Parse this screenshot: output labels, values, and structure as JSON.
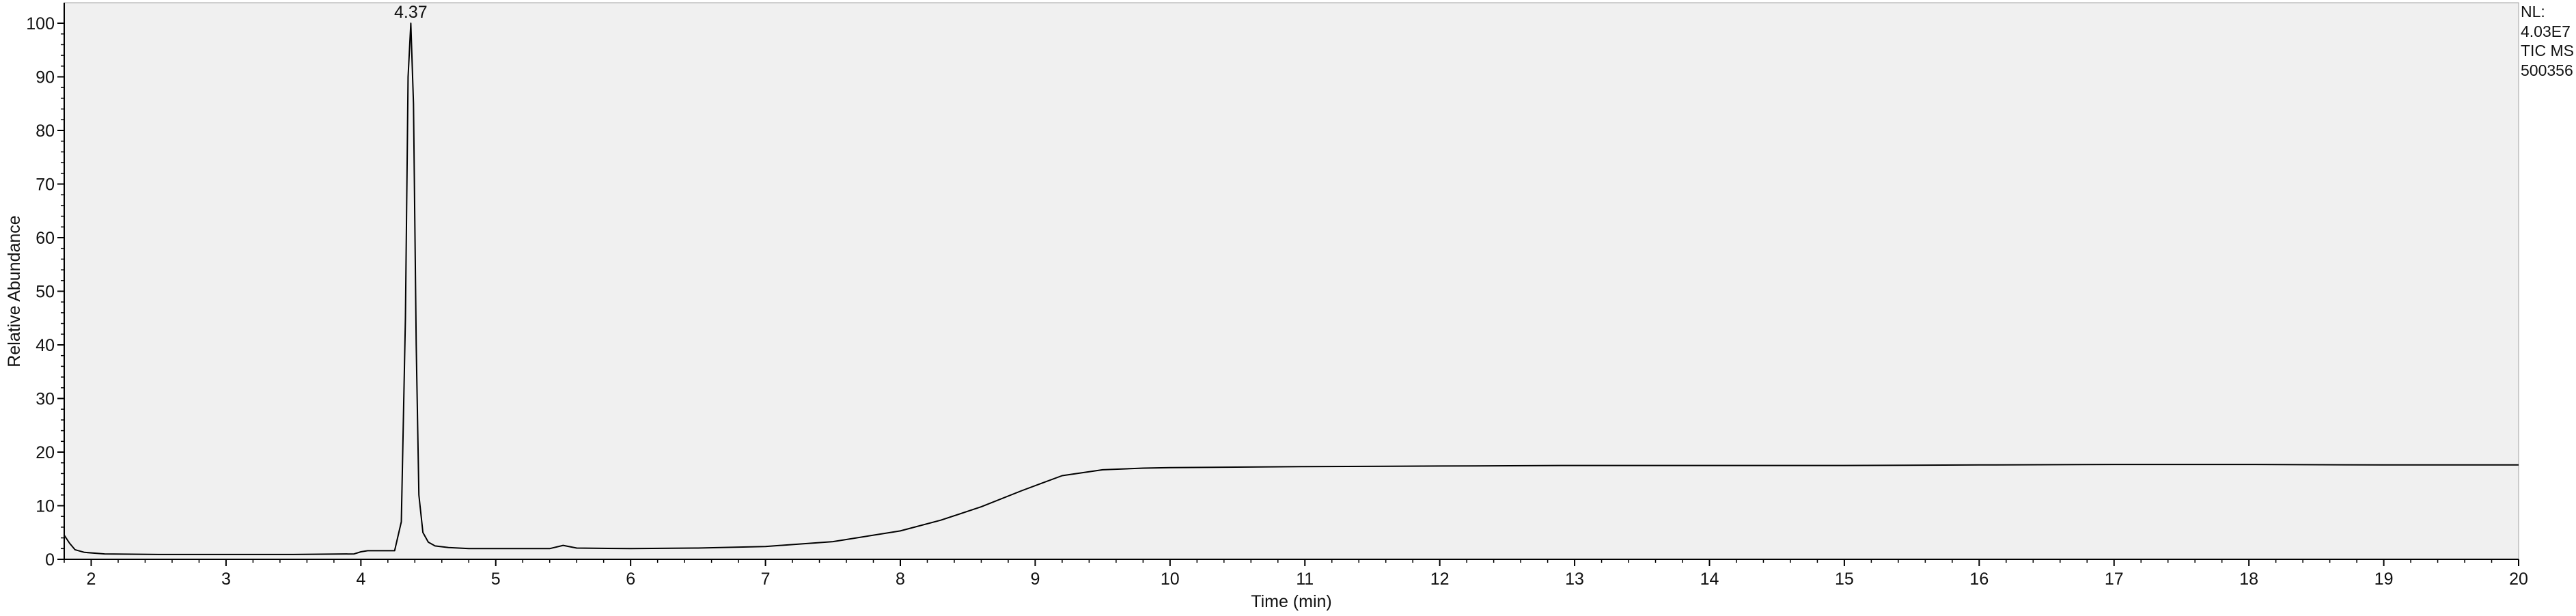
{
  "info": {
    "nl_label": "NL:",
    "nl_value": "4.03E7",
    "trace": "TIC  MS",
    "sample": "500356"
  },
  "chart_data": {
    "type": "line",
    "title": "",
    "xlabel": "Time (min)",
    "ylabel": "Relative Abundance",
    "xlim": [
      1.8,
      20.0
    ],
    "ylim": [
      0,
      100
    ],
    "xticks": [
      2,
      3,
      4,
      5,
      6,
      7,
      8,
      9,
      10,
      11,
      12,
      13,
      14,
      15,
      16,
      17,
      18,
      19,
      20
    ],
    "yticks": [
      0,
      10,
      20,
      30,
      40,
      50,
      60,
      70,
      80,
      90,
      100
    ],
    "grid": false,
    "peak_annotations": [
      {
        "x": 4.37,
        "y": 100,
        "label": "4.37"
      }
    ],
    "series": [
      {
        "x": [
          1.8,
          1.84,
          1.88,
          1.95,
          2.1,
          2.5,
          3.0,
          3.5,
          3.95,
          4.0,
          4.05,
          4.25,
          4.3,
          4.33,
          4.35,
          4.37,
          4.39,
          4.41,
          4.43,
          4.46,
          4.5,
          4.55,
          4.65,
          4.8,
          5.0,
          5.4,
          5.5,
          5.6,
          6.0,
          6.5,
          7.0,
          7.5,
          8.0,
          8.3,
          8.6,
          8.9,
          9.2,
          9.5,
          9.8,
          10.0,
          11.0,
          12.0,
          13.0,
          14.0,
          15.0,
          16.0,
          17.0,
          18.0,
          19.0,
          20.0
        ],
        "values": [
          4.5,
          3.0,
          1.8,
          1.3,
          1.0,
          0.9,
          0.9,
          0.9,
          1.0,
          1.4,
          1.6,
          1.6,
          7.0,
          45.0,
          90.0,
          100.0,
          85.0,
          40.0,
          12.0,
          5.0,
          3.2,
          2.5,
          2.2,
          2.0,
          2.0,
          2.0,
          2.6,
          2.1,
          2.0,
          2.1,
          2.4,
          3.3,
          5.3,
          7.3,
          9.8,
          12.8,
          15.6,
          16.7,
          17.0,
          17.1,
          17.3,
          17.4,
          17.5,
          17.5,
          17.5,
          17.6,
          17.7,
          17.7,
          17.6,
          17.6
        ]
      }
    ]
  }
}
